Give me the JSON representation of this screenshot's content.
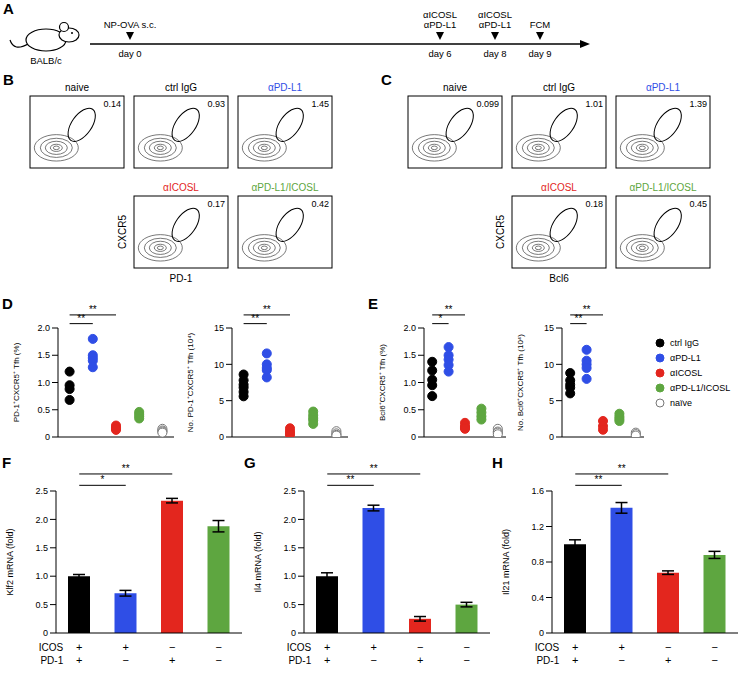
{
  "schematic": {
    "panel": "A",
    "strain": "BALB/c",
    "events": [
      {
        "label": [
          "NP-OVA s.c."
        ],
        "day": "day 0"
      },
      {
        "label": [
          "αICOSL",
          "αPD-L1"
        ],
        "day": "day 6"
      },
      {
        "label": [
          "αICOSL",
          "αPD-L1"
        ],
        "day": "day 8"
      },
      {
        "label": [
          "FCM"
        ],
        "day": "day 9"
      }
    ]
  },
  "flow": [
    {
      "panel": "B",
      "x_label": "PD-1",
      "y_label": "CXCR5",
      "plots": [
        {
          "title": "naive",
          "color": "#000000",
          "gate": 0.14
        },
        {
          "title": "ctrl IgG",
          "color": "#000000",
          "gate": 0.93
        },
        {
          "title": "αPD-L1",
          "color": "#2f4ee6",
          "gate": 1.45
        },
        {
          "title": "αICOSL",
          "color": "#e3261e",
          "gate": 0.17
        },
        {
          "title": "αPD-L1/ICOSL",
          "color": "#5ea640",
          "gate": 0.42
        }
      ]
    },
    {
      "panel": "C",
      "x_label": "Bcl6",
      "y_label": "CXCR5",
      "plots": [
        {
          "title": "naive",
          "color": "#000000",
          "gate": 0.099
        },
        {
          "title": "ctrl IgG",
          "color": "#000000",
          "gate": 1.01
        },
        {
          "title": "αPD-L1",
          "color": "#2f4ee6",
          "gate": 1.39
        },
        {
          "title": "αICOSL",
          "color": "#e3261e",
          "gate": 0.18
        },
        {
          "title": "αPD-L1/ICOSL",
          "color": "#5ea640",
          "gate": 0.45
        }
      ]
    }
  ],
  "chart_data": [
    {
      "type": "scatter",
      "panel": "D",
      "y_label": "PD-1⁺CXCR5⁺ Tfh (%)",
      "ylim": [
        0,
        2
      ],
      "yticks": [
        0,
        0.5,
        {
          "value": 1,
          "label": "1.0"
        },
        1.5,
        {
          "value": 2,
          "label": "2.0"
        }
      ],
      "tick_labels": "y",
      "series": [
        {
          "name": "ctrl IgG",
          "color": "#000000",
          "marker": "circle",
          "values": [
            1.2,
            0.95,
            0.88,
            0.68
          ]
        },
        {
          "name": "αPD-L1",
          "color": "#2f4ee6",
          "marker": "circle",
          "values": [
            1.8,
            1.5,
            1.45,
            1.4,
            1.28
          ]
        },
        {
          "name": "αICOSL",
          "color": "#e3261e",
          "marker": "circle",
          "values": [
            0.21,
            0.18,
            0.15,
            0.13
          ]
        },
        {
          "name": "αPD-L1/ICOSL",
          "color": "#5ea640",
          "marker": "circle",
          "values": [
            0.46,
            0.42,
            0.38,
            0.34
          ]
        },
        {
          "name": "naïve",
          "color": "#777777",
          "marker": "open_circle",
          "values": [
            0.15,
            0.12,
            0.1,
            0.08
          ]
        }
      ],
      "significance": [
        {
          "from": 0,
          "to": 1,
          "label": "**"
        },
        {
          "from": 0,
          "to": 2,
          "label": "**"
        }
      ]
    },
    {
      "type": "scatter",
      "panel": "D",
      "y_label": "No. PD-1⁺CXCR5⁺ Tfh (10⁴)",
      "ylim": [
        0,
        15
      ],
      "yticks": [
        0,
        5,
        10,
        15
      ],
      "tick_labels": "y",
      "series": [
        {
          "name": "ctrl IgG",
          "color": "#000000",
          "marker": "circle",
          "values": [
            8.6,
            7.8,
            7.2,
            6.8,
            6.2,
            5.6
          ]
        },
        {
          "name": "αPD-L1",
          "color": "#2f4ee6",
          "marker": "circle",
          "values": [
            11.5,
            10,
            9.5,
            9.2,
            8.2
          ]
        },
        {
          "name": "αICOSL",
          "color": "#e3261e",
          "marker": "circle",
          "values": [
            1.2,
            0.8,
            0.5,
            0.3
          ]
        },
        {
          "name": "αPD-L1/ICOSL",
          "color": "#5ea640",
          "marker": "circle",
          "values": [
            3.5,
            3,
            2.6,
            2.3,
            1.8
          ]
        },
        {
          "name": "naïve",
          "color": "#777777",
          "marker": "open_circle",
          "values": [
            0.8,
            0.5,
            0.3,
            0.2
          ]
        }
      ],
      "significance": [
        {
          "from": 0,
          "to": 1,
          "label": "**"
        },
        {
          "from": 0,
          "to": 2,
          "label": "**"
        }
      ]
    },
    {
      "type": "scatter",
      "panel": "E",
      "y_label": "Bcl6⁺CXCR5⁺ Tfh (%)",
      "ylim": [
        0,
        2
      ],
      "yticks": [
        0,
        0.5,
        {
          "value": 1,
          "label": "1.0"
        },
        1.5,
        {
          "value": 2,
          "label": "2.0"
        }
      ],
      "tick_labels": "y",
      "series": [
        {
          "name": "ctrl IgG",
          "color": "#000000",
          "marker": "circle",
          "values": [
            1.38,
            1.22,
            1.05,
            0.95,
            0.75
          ]
        },
        {
          "name": "αPD-L1",
          "color": "#2f4ee6",
          "marker": "circle",
          "values": [
            1.65,
            1.5,
            1.42,
            1.32,
            1.2
          ]
        },
        {
          "name": "αICOSL",
          "color": "#e3261e",
          "marker": "circle",
          "values": [
            0.26,
            0.2,
            0.17,
            0.15
          ]
        },
        {
          "name": "αPD-L1/ICOSL",
          "color": "#5ea640",
          "marker": "circle",
          "values": [
            0.52,
            0.45,
            0.38,
            0.32
          ]
        },
        {
          "name": "naïve",
          "color": "#777777",
          "marker": "open_circle",
          "values": [
            0.15,
            0.1,
            0.08,
            0.05
          ]
        }
      ],
      "significance": [
        {
          "from": 0,
          "to": 1,
          "label": "*"
        },
        {
          "from": 0,
          "to": 2,
          "label": "**"
        }
      ]
    },
    {
      "type": "scatter",
      "panel": "E",
      "y_label": "No. Bcl6⁺CXCR5⁺ Tfh (10⁴)",
      "ylim": [
        0,
        15
      ],
      "yticks": [
        0,
        5,
        10,
        15
      ],
      "tick_labels": "y",
      "legend": "right",
      "series": [
        {
          "name": "ctrl IgG",
          "color": "#000000",
          "marker": "circle",
          "values": [
            8.8,
            7.8,
            7.2,
            6.8,
            6
          ]
        },
        {
          "name": "αPD-L1",
          "color": "#2f4ee6",
          "marker": "circle",
          "values": [
            12,
            10.5,
            10,
            9.5,
            8
          ]
        },
        {
          "name": "αICOSL",
          "color": "#e3261e",
          "marker": "circle",
          "values": [
            2.2,
            1.5,
            1
          ]
        },
        {
          "name": "αPD-L1/ICOSL",
          "color": "#5ea640",
          "marker": "circle",
          "values": [
            3.2,
            2.8,
            2.5,
            2.2
          ]
        },
        {
          "name": "naïve",
          "color": "#777777",
          "marker": "open_circle",
          "values": [
            0.6,
            0.4,
            0.2
          ]
        }
      ],
      "significance": [
        {
          "from": 0,
          "to": 1,
          "label": "**"
        },
        {
          "from": 0,
          "to": 2,
          "label": "**"
        }
      ]
    },
    {
      "type": "bar",
      "panel": "F",
      "y_label": "Klf2 mRNA (fold)",
      "ylim": [
        0,
        2.5
      ],
      "yticks": [
        0,
        0.5,
        {
          "value": 1,
          "label": "1.0"
        },
        1.5,
        {
          "value": 2,
          "label": "2.0"
        },
        2.5
      ],
      "values": [
        1,
        0.7,
        2.33,
        1.88
      ],
      "errors": [
        0.03,
        0.05,
        0.04,
        0.1
      ],
      "colors": [
        "#000000",
        "#2f4ee6",
        "#e3261e",
        "#5ea640"
      ],
      "rows": [
        {
          "label": "ICOS",
          "values": [
            "+",
            "+",
            "−",
            "−"
          ]
        },
        {
          "label": "PD-1",
          "values": [
            "+",
            "−",
            "+",
            "−"
          ]
        }
      ],
      "significance": [
        {
          "from": 0,
          "to": 1,
          "label": "*"
        },
        {
          "from": 0,
          "to": 2,
          "label": "**"
        }
      ]
    },
    {
      "type": "bar",
      "panel": "G",
      "y_label": "Il4 mRNA (fold)",
      "ylim": [
        0,
        2.5
      ],
      "yticks": [
        0,
        0.5,
        {
          "value": 1,
          "label": "1.0"
        },
        1.5,
        {
          "value": 2,
          "label": "2.0"
        },
        2.5
      ],
      "values": [
        1,
        2.2,
        0.25,
        0.5
      ],
      "errors": [
        0.06,
        0.05,
        0.04,
        0.04
      ],
      "colors": [
        "#000000",
        "#2f4ee6",
        "#e3261e",
        "#5ea640"
      ],
      "rows": [
        {
          "label": "ICOS",
          "values": [
            "+",
            "+",
            "−",
            "−"
          ]
        },
        {
          "label": "PD-1",
          "values": [
            "+",
            "−",
            "+",
            "−"
          ]
        }
      ],
      "significance": [
        {
          "from": 0,
          "to": 1,
          "label": "**"
        },
        {
          "from": 0,
          "to": 2,
          "label": "**"
        }
      ]
    },
    {
      "type": "bar",
      "panel": "H",
      "y_label": "Il21 mRNA (fold)",
      "ylim": [
        0,
        1.6
      ],
      "yticks": [
        0,
        0.4,
        0.8,
        1.2,
        1.6
      ],
      "values": [
        1,
        1.41,
        0.68,
        0.88
      ],
      "errors": [
        0.05,
        0.06,
        0.02,
        0.04
      ],
      "colors": [
        "#000000",
        "#2f4ee6",
        "#e3261e",
        "#5ea640"
      ],
      "rows": [
        {
          "label": "ICOS",
          "values": [
            "+",
            "+",
            "−",
            "−"
          ]
        },
        {
          "label": "PD-1",
          "values": [
            "+",
            "−",
            "+",
            "−"
          ]
        }
      ],
      "significance": [
        {
          "from": 0,
          "to": 1,
          "label": "**"
        },
        {
          "from": 0,
          "to": 2,
          "label": "**"
        }
      ]
    }
  ]
}
